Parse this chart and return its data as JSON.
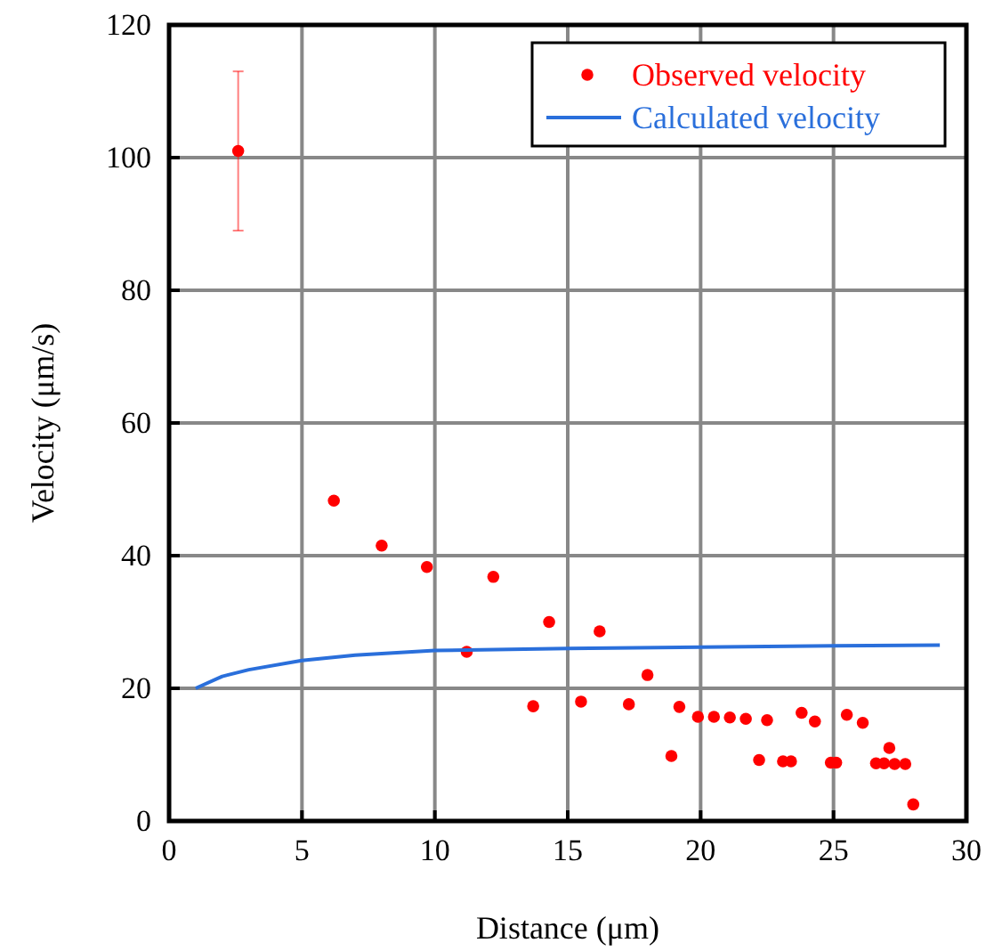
{
  "chart_data": {
    "type": "scatter",
    "xlabel": "Distance (μm)",
    "ylabel": "Velocity (μm/s)",
    "xlim": [
      0,
      30
    ],
    "ylim": [
      0,
      120
    ],
    "xticks": [
      0,
      5,
      10,
      15,
      20,
      25,
      30
    ],
    "yticks": [
      0,
      20,
      40,
      60,
      80,
      100,
      120
    ],
    "grid": true,
    "legend": "top right",
    "marker": "circle",
    "series": [
      {
        "name": "Observed velocity",
        "color": "#ff0000",
        "x": [
          2.6,
          6.2,
          8.0,
          9.7,
          11.2,
          12.2,
          13.7,
          14.3,
          15.5,
          16.2,
          17.3,
          18.0,
          18.9,
          19.2,
          19.9,
          20.5,
          21.1,
          21.7,
          22.2,
          22.5,
          23.1,
          23.4,
          23.8,
          24.3,
          24.9,
          25.1,
          25.5,
          26.1,
          26.6,
          26.9,
          27.1,
          27.3,
          27.7,
          28.0
        ],
        "values": [
          101,
          48.3,
          41.5,
          38.3,
          25.5,
          36.8,
          17.3,
          30,
          18,
          28.6,
          17.6,
          22,
          9.8,
          17.2,
          15.7,
          15.7,
          15.6,
          15.4,
          9.2,
          15.2,
          9,
          9,
          16.3,
          15,
          8.8,
          8.8,
          16,
          14.8,
          8.7,
          8.7,
          11,
          8.6,
          8.6,
          2.5
        ],
        "errors": [
          [
            89,
            113
          ],
          null,
          null,
          null,
          null,
          null,
          null,
          null,
          null,
          null,
          null,
          null,
          null,
          null,
          null,
          null,
          null,
          null,
          null,
          null,
          null,
          null,
          null,
          null,
          null,
          null,
          null,
          null,
          null,
          null,
          null,
          null,
          null,
          null
        ]
      },
      {
        "name": "Calculated velocity",
        "type": "line",
        "color": "#2a6fdb",
        "line_style": "solid",
        "marker": "none",
        "x": [
          1,
          2,
          3,
          5,
          7,
          10,
          15,
          20,
          25,
          29
        ],
        "values": [
          20,
          21.8,
          22.8,
          24.2,
          25,
          25.7,
          26,
          26.2,
          26.4,
          26.5
        ]
      }
    ]
  }
}
